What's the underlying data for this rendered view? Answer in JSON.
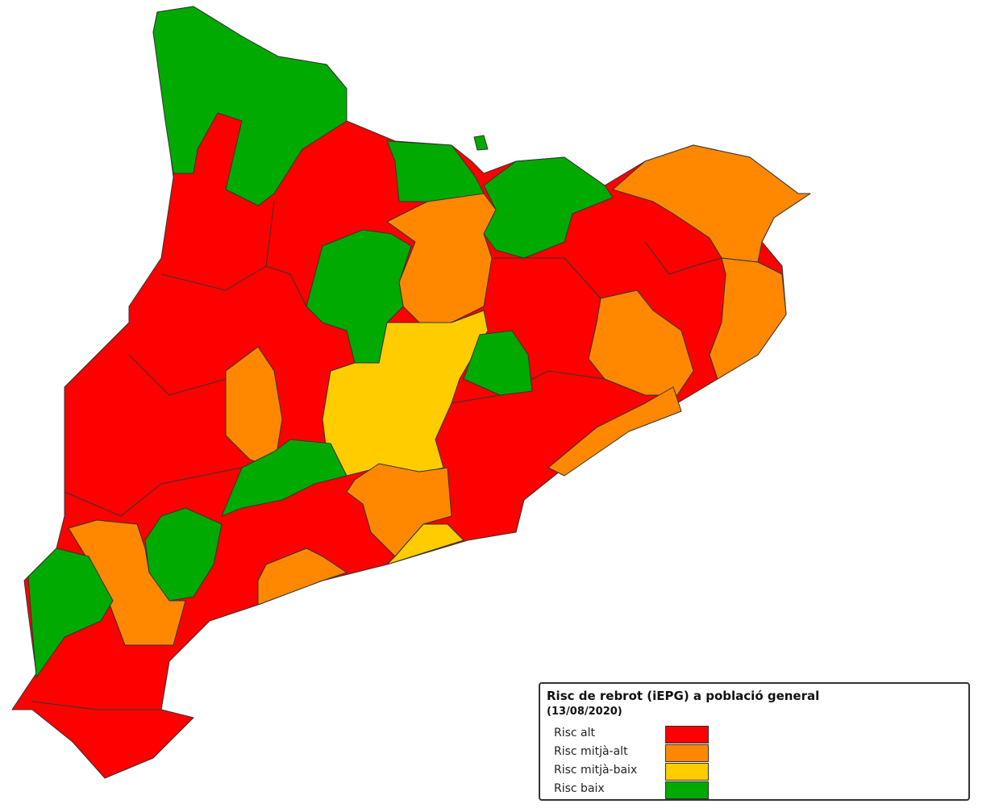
{
  "legend": {
    "title": "Risc de rebrot (iEPG) a població general",
    "subtitle": "(13/08/2020)",
    "items": [
      {
        "label": "Risc alt",
        "color": "#ff0000"
      },
      {
        "label": "Risc mitjà-alt",
        "color": "#ff8800"
      },
      {
        "label": "Risc mitjà-baix",
        "color": "#ffcc00"
      },
      {
        "label": "Risc baix",
        "color": "#00aa00"
      }
    ]
  }
}
